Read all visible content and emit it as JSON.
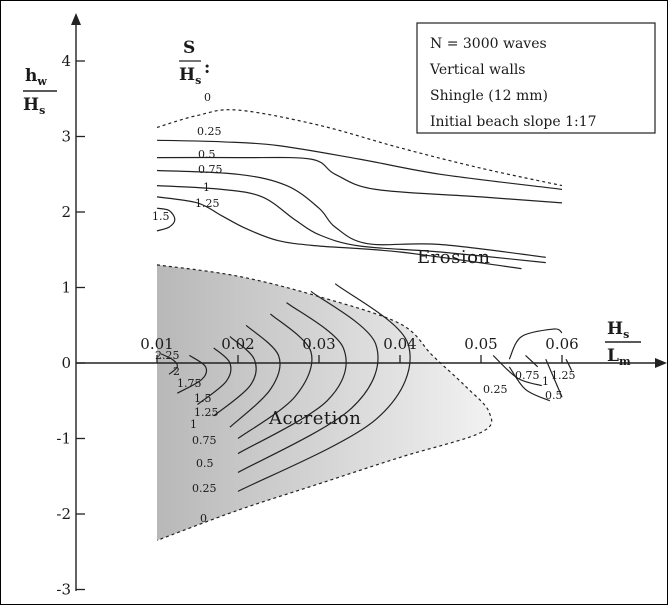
{
  "chart_data": {
    "type": "contour",
    "x_axis": {
      "label_num": "H",
      "label_num_sub": "s",
      "label_den": "L",
      "label_den_sub": "m",
      "ticks": [
        "0.01",
        "0.02",
        "0.03",
        "0.04",
        "0.05",
        "0.06"
      ],
      "tick_values": [
        0.01,
        0.02,
        0.03,
        0.04,
        0.05,
        0.06
      ],
      "range": [
        0.0,
        0.068
      ]
    },
    "y_axis": {
      "label_num": "h",
      "label_num_sub": "w",
      "label_den": "H",
      "label_den_sub": "s",
      "ticks": [
        "4",
        "3",
        "2",
        "1",
        "0",
        "-1",
        "-2",
        "-3"
      ],
      "tick_values": [
        4,
        3,
        2,
        1,
        0,
        -1,
        -2,
        -3
      ],
      "range": [
        -3.1,
        4.5
      ]
    },
    "contour_variable": {
      "num": "S",
      "den": "H",
      "den_sub": "s",
      "suffix": ":"
    },
    "legend": {
      "lines": [
        "N = 3000 waves",
        "Vertical walls",
        "Shingle (12 mm)",
        "Initial beach slope 1:17"
      ]
    },
    "regions": {
      "erosion": "Erosion",
      "accretion": "Accretion"
    },
    "upper_contours": [
      {
        "level": "0",
        "dashed": true,
        "points": [
          [
            0.01,
            3.12
          ],
          [
            0.015,
            3.28
          ],
          [
            0.02,
            3.35
          ],
          [
            0.03,
            3.15
          ],
          [
            0.04,
            2.85
          ],
          [
            0.05,
            2.58
          ],
          [
            0.06,
            2.35
          ]
        ]
      },
      {
        "level": "0.25",
        "dashed": false,
        "points": [
          [
            0.01,
            2.95
          ],
          [
            0.018,
            2.93
          ],
          [
            0.025,
            2.88
          ],
          [
            0.035,
            2.7
          ],
          [
            0.045,
            2.5
          ],
          [
            0.06,
            2.3
          ]
        ]
      },
      {
        "level": "0.5",
        "dashed": false,
        "points": [
          [
            0.01,
            2.72
          ],
          [
            0.02,
            2.72
          ],
          [
            0.029,
            2.7
          ],
          [
            0.032,
            2.5
          ],
          [
            0.037,
            2.3
          ],
          [
            0.05,
            2.2
          ],
          [
            0.06,
            2.12
          ]
        ]
      },
      {
        "level": "0.75",
        "dashed": false,
        "points": [
          [
            0.01,
            2.55
          ],
          [
            0.02,
            2.5
          ],
          [
            0.026,
            2.35
          ],
          [
            0.03,
            2.05
          ],
          [
            0.032,
            1.8
          ],
          [
            0.036,
            1.58
          ],
          [
            0.045,
            1.57
          ],
          [
            0.058,
            1.4
          ]
        ]
      },
      {
        "level": "1",
        "dashed": false,
        "points": [
          [
            0.01,
            2.35
          ],
          [
            0.018,
            2.3
          ],
          [
            0.023,
            2.2
          ],
          [
            0.027,
            1.9
          ],
          [
            0.03,
            1.7
          ],
          [
            0.035,
            1.55
          ],
          [
            0.045,
            1.47
          ],
          [
            0.058,
            1.33
          ]
        ]
      },
      {
        "level": "1.25",
        "dashed": false,
        "points": [
          [
            0.01,
            2.2
          ],
          [
            0.015,
            2.12
          ],
          [
            0.018,
            1.95
          ],
          [
            0.021,
            1.78
          ],
          [
            0.025,
            1.62
          ],
          [
            0.03,
            1.55
          ],
          [
            0.04,
            1.47
          ],
          [
            0.055,
            1.25
          ]
        ]
      },
      {
        "level": "1.5",
        "dashed": false,
        "points": [
          [
            0.01,
            2.05
          ],
          [
            0.0115,
            2.02
          ],
          [
            0.0122,
            1.9
          ],
          [
            0.0115,
            1.8
          ],
          [
            0.01,
            1.75
          ]
        ]
      }
    ],
    "lower_contours": [
      {
        "level": "2.25",
        "points": [
          [
            0.0105,
            0.12
          ],
          [
            0.012,
            0.04
          ],
          [
            0.0125,
            -0.05
          ],
          [
            0.0115,
            -0.15
          ]
        ]
      },
      {
        "level": "2",
        "points": [
          [
            0.014,
            0.1
          ],
          [
            0.016,
            -0.05
          ],
          [
            0.0155,
            -0.22
          ],
          [
            0.0125,
            -0.4
          ]
        ]
      },
      {
        "level": "1.75",
        "points": [
          [
            0.017,
            0.2
          ],
          [
            0.019,
            0.0
          ],
          [
            0.0185,
            -0.25
          ],
          [
            0.015,
            -0.55
          ]
        ]
      },
      {
        "level": "1.5",
        "points": [
          [
            0.019,
            0.35
          ],
          [
            0.022,
            0.05
          ],
          [
            0.0215,
            -0.3
          ],
          [
            0.017,
            -0.7
          ]
        ]
      },
      {
        "level": "1.25",
        "points": [
          [
            0.021,
            0.5
          ],
          [
            0.025,
            0.1
          ],
          [
            0.024,
            -0.35
          ],
          [
            0.019,
            -0.85
          ]
        ]
      },
      {
        "level": "1",
        "points": [
          [
            0.024,
            0.65
          ],
          [
            0.029,
            0.15
          ],
          [
            0.027,
            -0.45
          ],
          [
            0.02,
            -1.0
          ]
        ]
      },
      {
        "level": "0.75",
        "points": [
          [
            0.026,
            0.8
          ],
          [
            0.033,
            0.2
          ],
          [
            0.031,
            -0.5
          ],
          [
            0.02,
            -1.2
          ]
        ]
      },
      {
        "level": "0.5",
        "points": [
          [
            0.029,
            0.95
          ],
          [
            0.037,
            0.25
          ],
          [
            0.034,
            -0.6
          ],
          [
            0.02,
            -1.45
          ]
        ]
      },
      {
        "level": "0.25",
        "points": [
          [
            0.032,
            1.05
          ],
          [
            0.041,
            0.25
          ],
          [
            0.037,
            -0.75
          ],
          [
            0.02,
            -1.7
          ]
        ]
      }
    ],
    "accretion_boundary": {
      "level": "0",
      "points": [
        [
          0.01,
          1.3
        ],
        [
          0.02,
          1.15
        ],
        [
          0.03,
          0.88
        ],
        [
          0.04,
          0.52
        ],
        [
          0.044,
          0.1
        ],
        [
          0.048,
          -0.3
        ],
        [
          0.051,
          -0.65
        ],
        [
          0.05,
          -0.92
        ],
        [
          0.04,
          -1.25
        ],
        [
          0.03,
          -1.6
        ],
        [
          0.02,
          -1.95
        ],
        [
          0.01,
          -2.35
        ]
      ]
    },
    "right_contours": [
      {
        "level": "0.25",
        "points": [
          [
            0.0515,
            0.1
          ],
          [
            0.0545,
            -0.2
          ],
          [
            0.0575,
            -0.3
          ]
        ]
      },
      {
        "level": "0.5",
        "points": [
          [
            0.0535,
            -0.05
          ],
          [
            0.0555,
            -0.35
          ],
          [
            0.0585,
            -0.5
          ]
        ]
      },
      {
        "level": "0.75",
        "points": [
          [
            0.0555,
            0.1
          ],
          [
            0.057,
            -0.05
          ]
        ]
      },
      {
        "level": "1",
        "points": [
          [
            0.058,
            0.05
          ],
          [
            0.059,
            -0.2
          ],
          [
            0.06,
            -0.45
          ]
        ]
      },
      {
        "level": "1.25",
        "points": [
          [
            0.0605,
            0.05
          ],
          [
            0.0612,
            -0.1
          ]
        ]
      }
    ],
    "right_arc": {
      "points": [
        [
          0.0535,
          0.05
        ],
        [
          0.055,
          0.35
        ],
        [
          0.059,
          0.45
        ],
        [
          0.06,
          0.4
        ]
      ]
    }
  }
}
